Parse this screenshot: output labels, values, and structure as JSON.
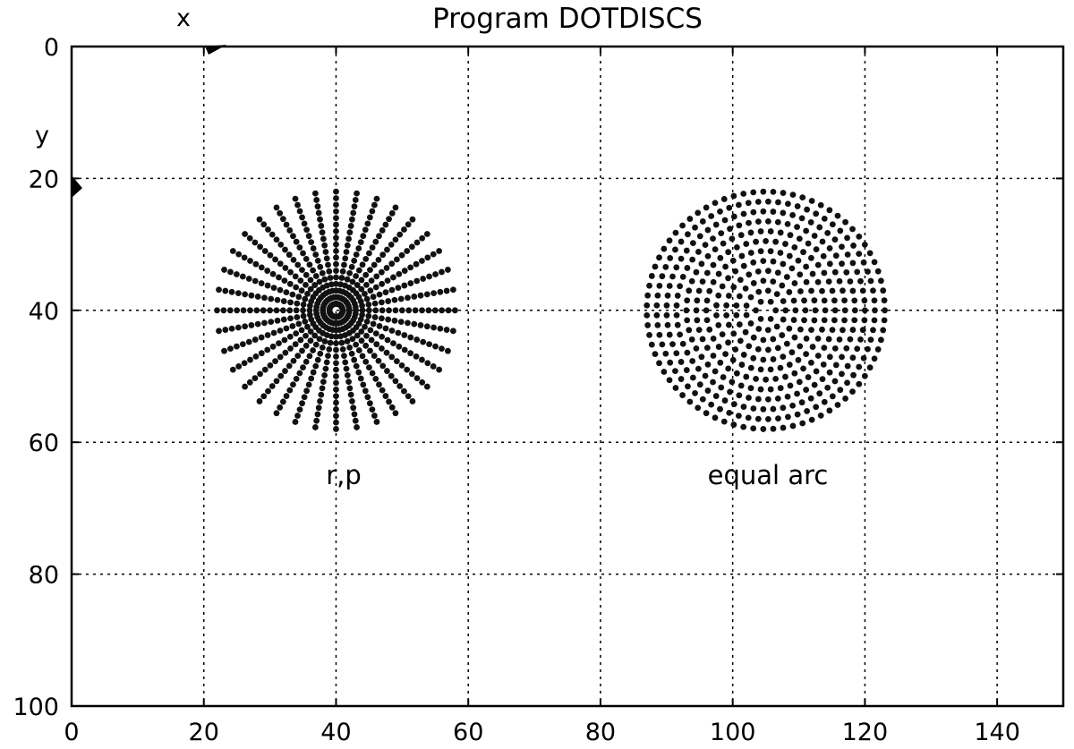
{
  "chart_data": {
    "type": "scatter",
    "title": "Program DOTDISCS",
    "xlabel": "x",
    "ylabel": "y",
    "xlim": [
      0,
      150
    ],
    "ylim": [
      0,
      100
    ],
    "y_inverted": true,
    "grid": true,
    "x_ticks": [
      "0",
      "20",
      "40",
      "60",
      "80",
      "100",
      "120",
      "140"
    ],
    "y_ticks": [
      "0",
      "20",
      "40",
      "60",
      "80",
      "100"
    ],
    "x_tick_values": [
      0,
      20,
      40,
      60,
      80,
      100,
      120,
      140
    ],
    "y_tick_values": [
      0,
      20,
      40,
      60,
      80,
      100
    ],
    "annotations": [
      {
        "text": "r,p",
        "x": 41,
        "y": 65
      },
      {
        "text": "equal arc",
        "x": 105,
        "y": 65
      }
    ],
    "series": [
      {
        "name": "",
        "description_key": "disc_rp",
        "center": [
          40,
          40
        ],
        "outer_radius": 18,
        "rings": 18,
        "dots_per_ring": 36,
        "dot_color": "#111111"
      },
      {
        "name": "",
        "description_key": "disc_equal_arc",
        "center": [
          105,
          40
        ],
        "outer_radius": 18,
        "rings": 12,
        "dot_spacing": 1.5,
        "dot_color": "#111111"
      }
    ],
    "axis_markers": [
      {
        "name": "x-axis-arrow",
        "x": 21,
        "y": 0
      },
      {
        "name": "y-axis-arrow",
        "x": 0,
        "y": 22
      }
    ]
  }
}
